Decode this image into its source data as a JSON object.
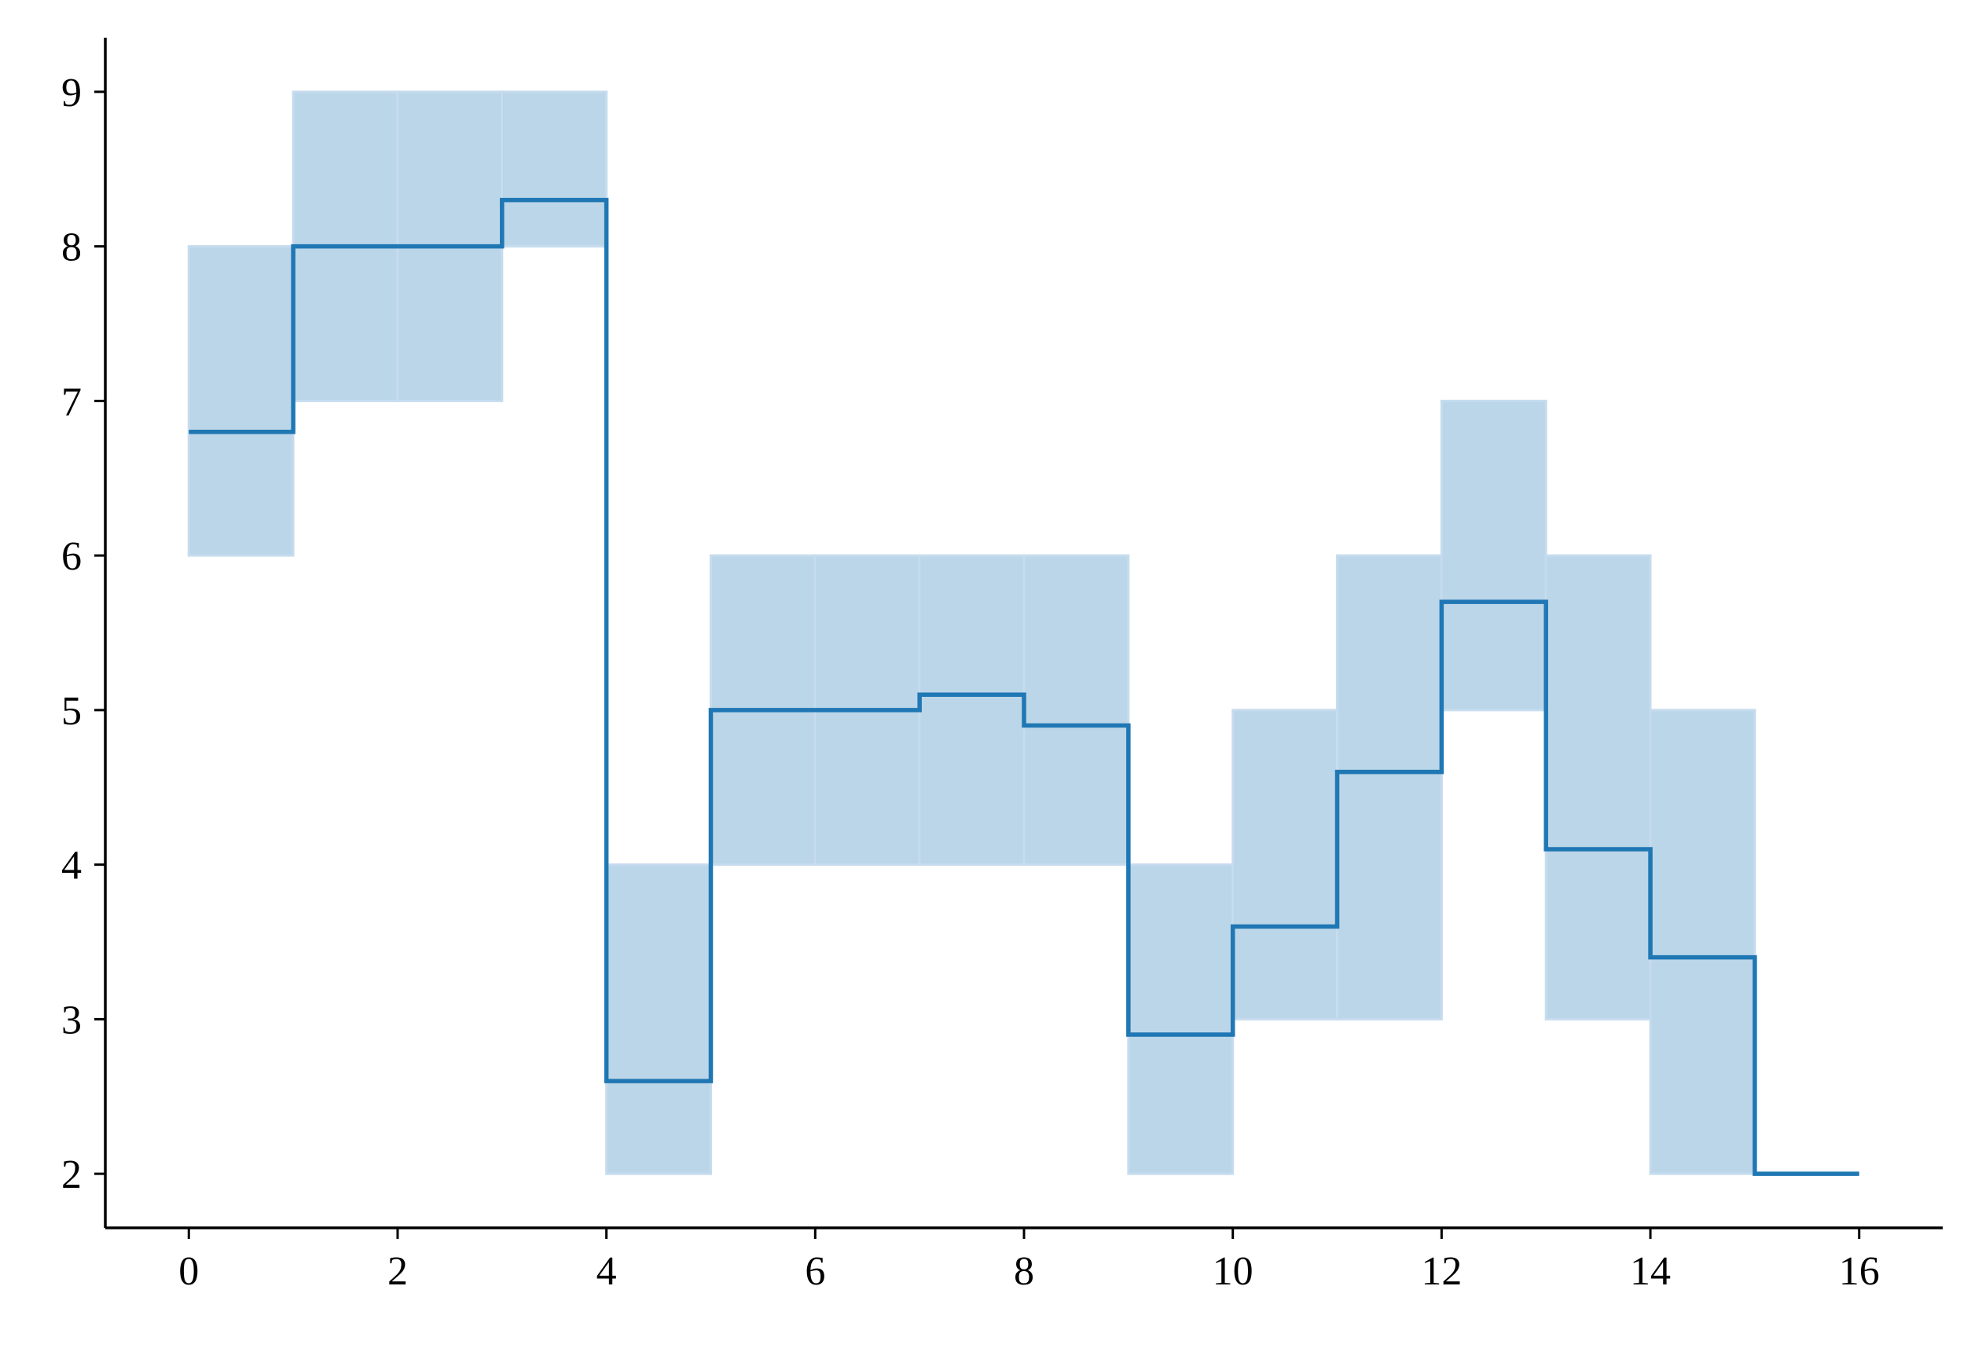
{
  "chart_data": {
    "type": "line",
    "title": "",
    "xlabel": "",
    "ylabel": "",
    "xlim": [
      -0.8,
      16.8
    ],
    "ylim": [
      1.65,
      9.35
    ],
    "grid": false,
    "line_style": "steps-post",
    "colors": {
      "line": "#1f77b4",
      "band": "#1f77b4",
      "axis": "#000000"
    },
    "x_ticks": [
      0,
      2,
      4,
      6,
      8,
      10,
      12,
      14,
      16
    ],
    "x_tick_labels": [
      "0",
      "2",
      "4",
      "6",
      "8",
      "10",
      "12",
      "14",
      "16"
    ],
    "y_ticks": [
      2,
      3,
      4,
      5,
      6,
      7,
      8,
      9
    ],
    "y_tick_labels": [
      "2",
      "3",
      "4",
      "5",
      "6",
      "7",
      "8",
      "9"
    ],
    "series": [
      {
        "x": [
          0,
          1,
          2,
          3,
          4,
          5,
          6,
          7,
          8,
          9,
          10,
          11,
          12,
          13,
          14,
          15,
          16
        ],
        "values": [
          6.8,
          8.0,
          8.0,
          8.3,
          2.6,
          5.0,
          5.0,
          5.1,
          4.9,
          2.9,
          3.6,
          4.6,
          5.7,
          4.1,
          3.4,
          2.0,
          2.0
        ],
        "band_lower": [
          6,
          7,
          7,
          8,
          2,
          4,
          4,
          4,
          4,
          2,
          3,
          3,
          5,
          3,
          2,
          2,
          2
        ],
        "band_upper": [
          8,
          9,
          9,
          9,
          4,
          6,
          6,
          6,
          6,
          4,
          5,
          6,
          7,
          6,
          5,
          2,
          2
        ]
      }
    ]
  }
}
